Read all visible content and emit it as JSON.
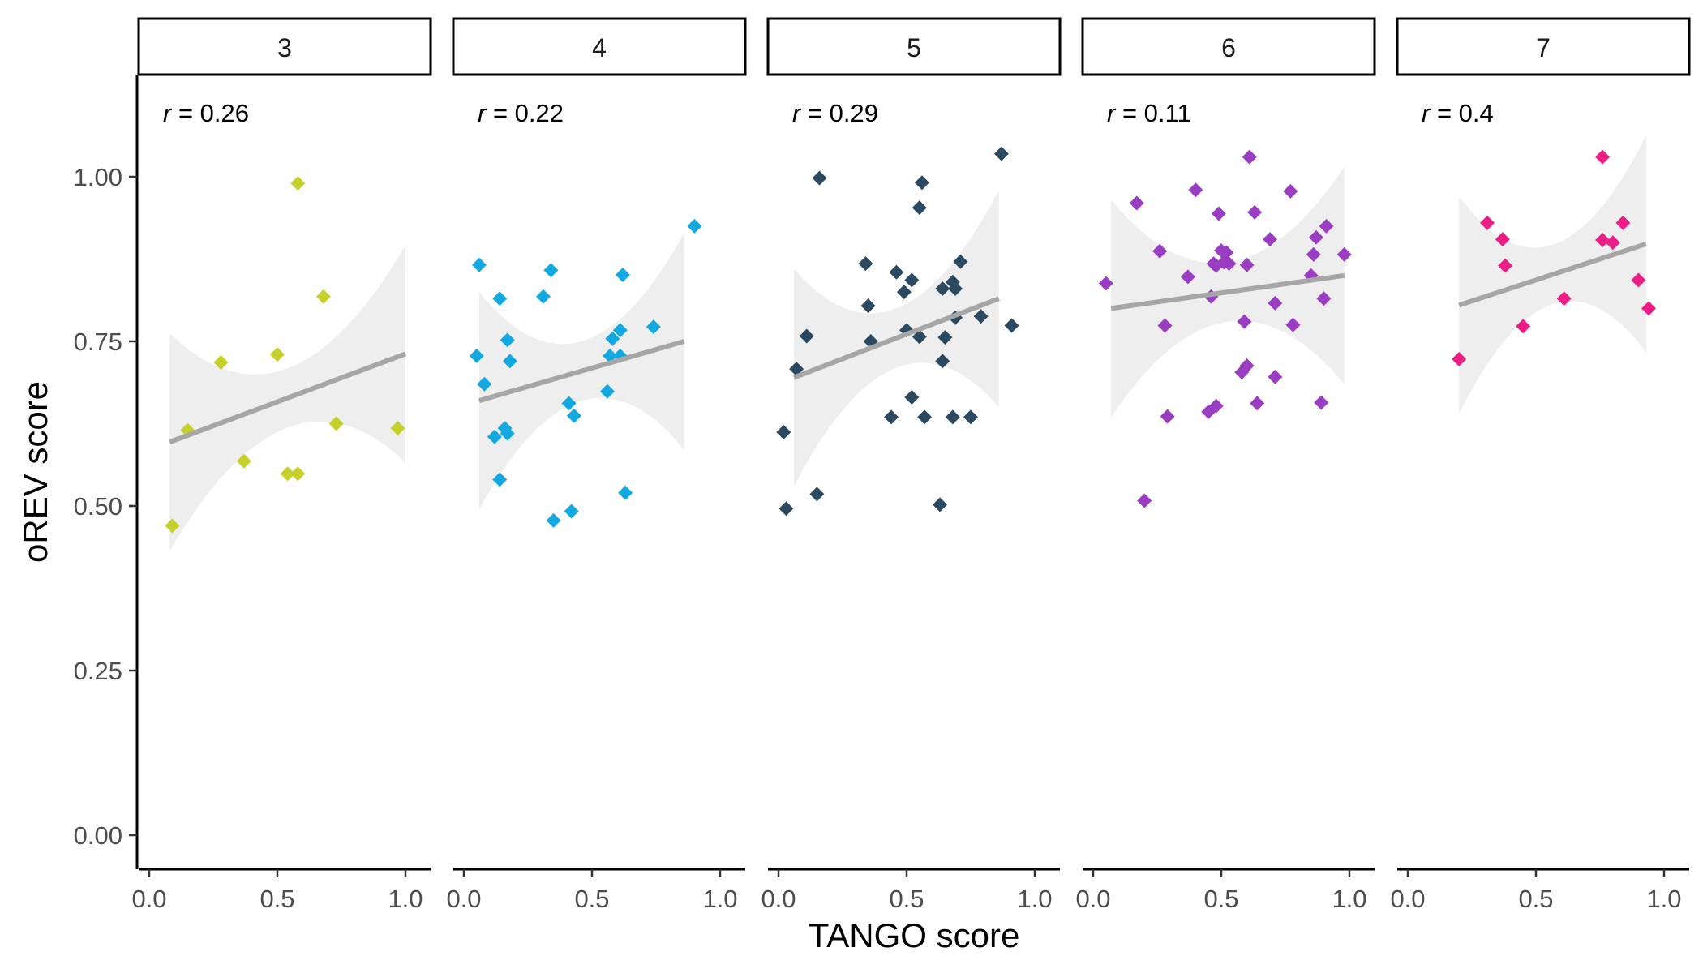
{
  "chart_data": {
    "type": "scatter",
    "xlabel": "TANGO score",
    "ylabel": "oREV score",
    "xlim": [
      -0.05,
      1.1
    ],
    "ylim": [
      -0.05,
      1.15
    ],
    "x_ticks": [
      "0.0",
      "0.5",
      "1.0"
    ],
    "x_tick_values": [
      0.0,
      0.5,
      1.0
    ],
    "y_ticks": [
      "0.00",
      "0.25",
      "0.50",
      "0.75",
      "1.00"
    ],
    "y_tick_values": [
      0.0,
      0.25,
      0.5,
      0.75,
      1.0
    ],
    "grid": false,
    "marker": "diamond",
    "trend_color": "#A6A6A6",
    "ribbon_color": "#EBEBEB",
    "panels": [
      {
        "label": "3",
        "r_text": "= 0.26",
        "color": "#C5D12A",
        "fit": {
          "x0": 0.08,
          "x1": 1.0,
          "y0": 0.597,
          "y1": 0.731
        },
        "points": [
          [
            0.09,
            0.47
          ],
          [
            0.15,
            0.615
          ],
          [
            0.28,
            0.718
          ],
          [
            0.37,
            0.568
          ],
          [
            0.5,
            0.73
          ],
          [
            0.54,
            0.549
          ],
          [
            0.58,
            0.549
          ],
          [
            0.58,
            0.99
          ],
          [
            0.68,
            0.818
          ],
          [
            0.73,
            0.625
          ],
          [
            0.97,
            0.618
          ]
        ]
      },
      {
        "label": "4",
        "r_text": "= 0.22",
        "color": "#12A9E1",
        "fit": {
          "x0": 0.06,
          "x1": 0.86,
          "y0": 0.66,
          "y1": 0.75
        },
        "points": [
          [
            0.05,
            0.728
          ],
          [
            0.06,
            0.866
          ],
          [
            0.08,
            0.685
          ],
          [
            0.12,
            0.605
          ],
          [
            0.14,
            0.815
          ],
          [
            0.14,
            0.54
          ],
          [
            0.16,
            0.618
          ],
          [
            0.17,
            0.752
          ],
          [
            0.17,
            0.61
          ],
          [
            0.18,
            0.72
          ],
          [
            0.31,
            0.818
          ],
          [
            0.34,
            0.858
          ],
          [
            0.35,
            0.478
          ],
          [
            0.41,
            0.656
          ],
          [
            0.42,
            0.492
          ],
          [
            0.43,
            0.637
          ],
          [
            0.56,
            0.674
          ],
          [
            0.57,
            0.728
          ],
          [
            0.58,
            0.754
          ],
          [
            0.61,
            0.767
          ],
          [
            0.61,
            0.728
          ],
          [
            0.62,
            0.851
          ],
          [
            0.63,
            0.52
          ],
          [
            0.74,
            0.772
          ],
          [
            0.9,
            0.925
          ]
        ]
      },
      {
        "label": "5",
        "r_text": "= 0.29",
        "color": "#2B4A62",
        "fit": {
          "x0": 0.06,
          "x1": 0.86,
          "y0": 0.695,
          "y1": 0.815
        },
        "points": [
          [
            0.02,
            0.612
          ],
          [
            0.03,
            0.496
          ],
          [
            0.07,
            0.708
          ],
          [
            0.11,
            0.758
          ],
          [
            0.15,
            0.518
          ],
          [
            0.16,
            0.998
          ],
          [
            0.34,
            0.868
          ],
          [
            0.35,
            0.804
          ],
          [
            0.36,
            0.75
          ],
          [
            0.44,
            0.635
          ],
          [
            0.46,
            0.855
          ],
          [
            0.49,
            0.825
          ],
          [
            0.5,
            0.767
          ],
          [
            0.52,
            0.843
          ],
          [
            0.52,
            0.665
          ],
          [
            0.55,
            0.953
          ],
          [
            0.55,
            0.757
          ],
          [
            0.56,
            0.991
          ],
          [
            0.57,
            0.635
          ],
          [
            0.63,
            0.502
          ],
          [
            0.64,
            0.83
          ],
          [
            0.64,
            0.72
          ],
          [
            0.65,
            0.756
          ],
          [
            0.68,
            0.84
          ],
          [
            0.68,
            0.635
          ],
          [
            0.69,
            0.83
          ],
          [
            0.69,
            0.786
          ],
          [
            0.71,
            0.871
          ],
          [
            0.75,
            0.635
          ],
          [
            0.79,
            0.788
          ],
          [
            0.87,
            1.035
          ],
          [
            0.91,
            0.774
          ]
        ]
      },
      {
        "label": "6",
        "r_text": "= 0.11",
        "color": "#9A3DC2",
        "fit": {
          "x0": 0.07,
          "x1": 0.98,
          "y0": 0.8,
          "y1": 0.85
        },
        "points": [
          [
            0.05,
            0.838
          ],
          [
            0.17,
            0.96
          ],
          [
            0.2,
            0.508
          ],
          [
            0.26,
            0.887
          ],
          [
            0.28,
            0.774
          ],
          [
            0.29,
            0.636
          ],
          [
            0.37,
            0.848
          ],
          [
            0.4,
            0.98
          ],
          [
            0.45,
            0.643
          ],
          [
            0.46,
            0.818
          ],
          [
            0.47,
            0.868
          ],
          [
            0.48,
            0.652
          ],
          [
            0.48,
            0.865
          ],
          [
            0.49,
            0.944
          ],
          [
            0.5,
            0.888
          ],
          [
            0.51,
            0.87
          ],
          [
            0.52,
            0.885
          ],
          [
            0.53,
            0.868
          ],
          [
            0.58,
            0.703
          ],
          [
            0.59,
            0.78
          ],
          [
            0.6,
            0.866
          ],
          [
            0.6,
            0.713
          ],
          [
            0.61,
            1.03
          ],
          [
            0.63,
            0.946
          ],
          [
            0.64,
            0.656
          ],
          [
            0.69,
            0.905
          ],
          [
            0.71,
            0.696
          ],
          [
            0.71,
            0.808
          ],
          [
            0.77,
            0.978
          ],
          [
            0.78,
            0.775
          ],
          [
            0.85,
            0.85
          ],
          [
            0.86,
            0.882
          ],
          [
            0.87,
            0.908
          ],
          [
            0.89,
            0.657
          ],
          [
            0.9,
            0.815
          ],
          [
            0.91,
            0.925
          ],
          [
            0.98,
            0.882
          ]
        ]
      },
      {
        "label": "7",
        "r_text": "= 0.4",
        "color": "#EC1D86",
        "fit": {
          "x0": 0.2,
          "x1": 0.93,
          "y0": 0.805,
          "y1": 0.898
        },
        "points": [
          [
            0.2,
            0.723
          ],
          [
            0.31,
            0.93
          ],
          [
            0.37,
            0.905
          ],
          [
            0.38,
            0.865
          ],
          [
            0.45,
            0.773
          ],
          [
            0.61,
            0.815
          ],
          [
            0.76,
            1.03
          ],
          [
            0.76,
            0.904
          ],
          [
            0.8,
            0.9
          ],
          [
            0.84,
            0.93
          ],
          [
            0.9,
            0.843
          ],
          [
            0.94,
            0.8
          ]
        ]
      }
    ]
  }
}
